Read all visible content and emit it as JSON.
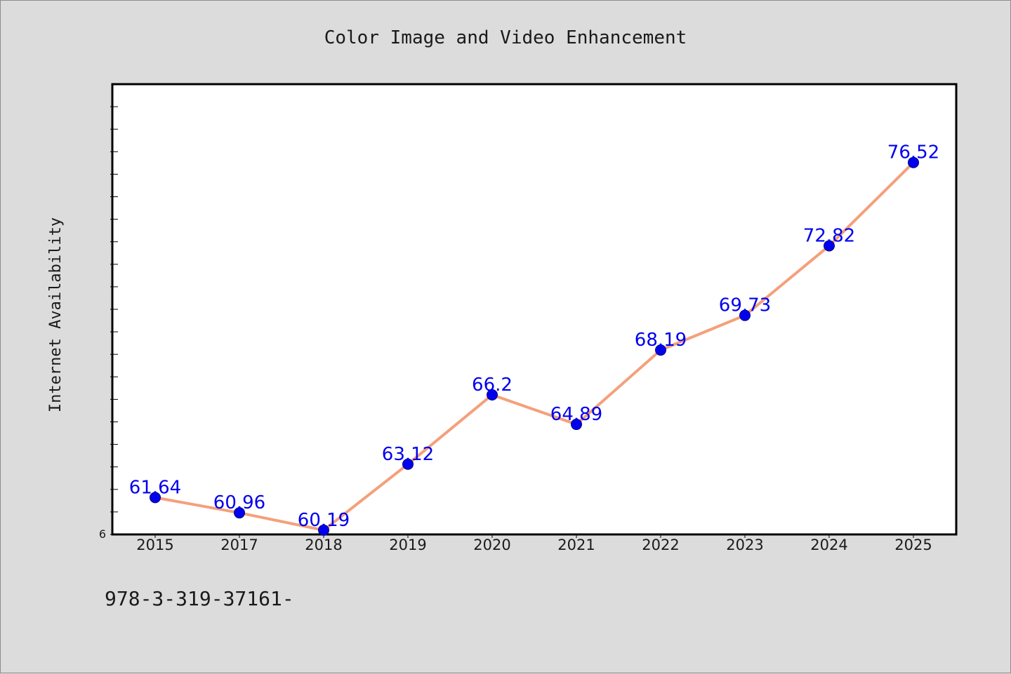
{
  "chart_data": {
    "type": "line",
    "title": "Color Image and Video Enhancement",
    "xlabel": "",
    "ylabel": "Internet Availability",
    "categories": [
      "2015",
      "2017",
      "2018",
      "2019",
      "2020",
      "2021",
      "2022",
      "2023",
      "2024",
      "2025"
    ],
    "series": [
      {
        "values": [
          61.64,
          60.96,
          60.19,
          63.12,
          66.2,
          64.89,
          68.19,
          69.73,
          72.82,
          76.52
        ],
        "line_color": "#f4a07a",
        "marker_color": "#0000ee",
        "label_color": "#0000ee"
      }
    ],
    "data_labels": [
      "61.64",
      "60.96",
      "60.19",
      "63.12",
      "66.2",
      "64.89",
      "68.19",
      "69.73",
      "72.82",
      "76.52"
    ],
    "ytick_labels": [
      "6"
    ],
    "ylim": [
      60,
      80
    ],
    "grid": false,
    "legend": "none",
    "footer": "978-3-319-37161-"
  },
  "colors": {
    "background": "#dcdcdc",
    "plot_background": "#ffffff",
    "axis": "#000000"
  }
}
